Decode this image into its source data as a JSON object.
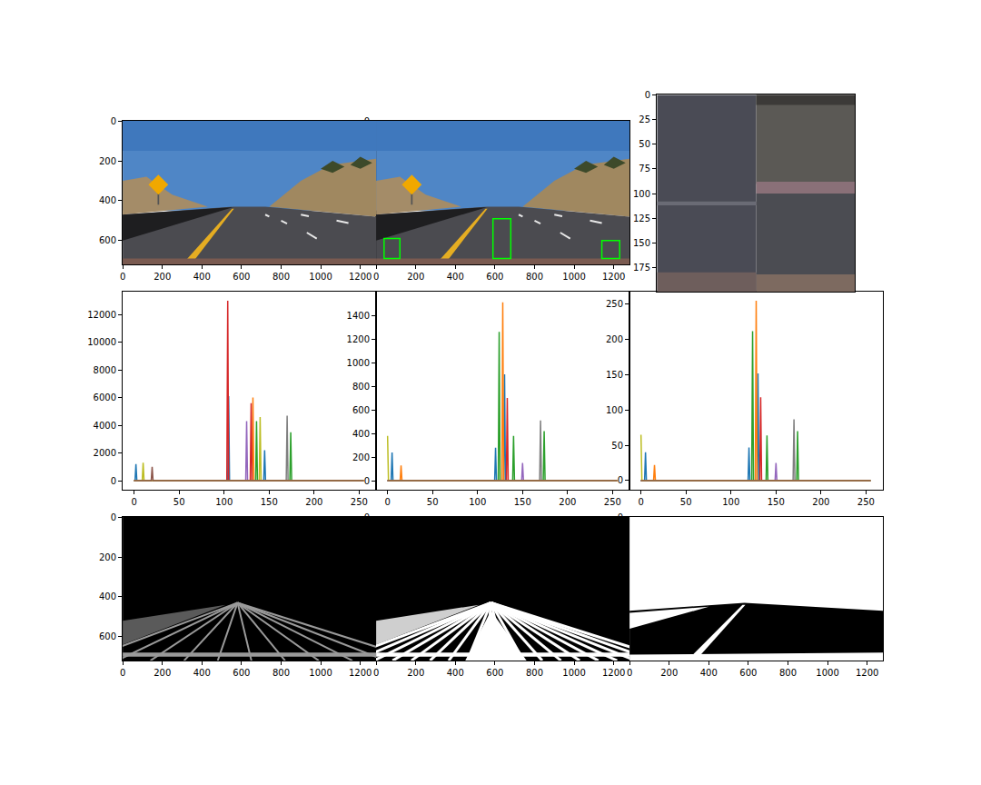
{
  "chart_data": [
    {
      "type": "image",
      "xlim": [
        -0.5,
        1279.5
      ],
      "ylim": [
        719.5,
        -0.5
      ],
      "xticks": [
        0,
        200,
        400,
        600,
        800,
        1000,
        1200
      ],
      "yticks": [
        0,
        200,
        400,
        600
      ]
    },
    {
      "type": "image",
      "xlim": [
        -0.5,
        1279.5
      ],
      "ylim": [
        719.5,
        -0.5
      ],
      "xticks": [
        0,
        200,
        400,
        600,
        800,
        1000,
        1200
      ],
      "yticks": [
        0,
        200,
        400,
        600
      ],
      "boxes": [
        [
          40,
          590,
          120,
          690
        ],
        [
          590,
          490,
          680,
          690
        ],
        [
          1140,
          600,
          1230,
          690
        ]
      ],
      "color": "#00ff00"
    },
    {
      "type": "image",
      "xlim": [
        -0.5,
        199.5
      ],
      "ylim": [
        199.5,
        -0.5
      ],
      "yticks": [
        0,
        25,
        50,
        75,
        100,
        125,
        150,
        175
      ],
      "tick_labels": "y"
    },
    {
      "type": "line",
      "xlim": [
        -12.8,
        268.8
      ],
      "ylim": [
        -650,
        13650
      ],
      "xticks": [
        0,
        50,
        100,
        150,
        200,
        250
      ],
      "yticks": [
        0,
        2000,
        4000,
        6000,
        8000,
        10000,
        12000
      ],
      "series": [
        {
          "color": "#1f77b4",
          "x": [
            0,
            1,
            2,
            3,
            104,
            105,
            106,
            144,
            145,
            146,
            255
          ],
          "values": [
            0,
            0,
            1200,
            0,
            0,
            6100,
            0,
            0,
            2200,
            0,
            0
          ]
        },
        {
          "color": "#ff7f0e",
          "x": [
            0,
            131,
            132,
            133,
            255
          ],
          "values": [
            0,
            0,
            6000,
            0,
            0
          ]
        },
        {
          "color": "#2ca02c",
          "x": [
            0,
            135,
            136,
            137,
            173,
            174,
            175,
            255
          ],
          "values": [
            0,
            0,
            4300,
            0,
            0,
            3500,
            0,
            0
          ]
        },
        {
          "color": "#d62728",
          "x": [
            0,
            103,
            104,
            105,
            129,
            130,
            131,
            255
          ],
          "values": [
            0,
            0,
            13000,
            0,
            0,
            5600,
            0,
            0
          ]
        },
        {
          "color": "#9467bd",
          "x": [
            0,
            124,
            125,
            126,
            255
          ],
          "values": [
            0,
            0,
            4300,
            0,
            0
          ]
        },
        {
          "color": "#7f7f7f",
          "x": [
            0,
            169,
            170,
            171,
            255
          ],
          "values": [
            0,
            0,
            4700,
            0,
            0
          ]
        },
        {
          "color": "#bcbd22",
          "x": [
            0,
            9,
            10,
            11,
            139,
            140,
            141,
            255
          ],
          "values": [
            0,
            0,
            1300,
            0,
            0,
            4600,
            0,
            0
          ]
        },
        {
          "color": "#8c564b",
          "x": [
            0,
            19,
            20,
            21,
            255
          ],
          "values": [
            0,
            0,
            1000,
            0,
            0
          ]
        }
      ]
    },
    {
      "type": "line",
      "xlim": [
        -12.8,
        268.8
      ],
      "ylim": [
        -76,
        1600
      ],
      "xticks": [
        0,
        50,
        100,
        150,
        200,
        250
      ],
      "yticks": [
        0,
        200,
        400,
        600,
        800,
        1000,
        1200,
        1400
      ],
      "series": [
        {
          "color": "#1f77b4",
          "x": [
            0,
            4,
            5,
            6,
            119,
            120,
            121,
            129,
            130,
            131,
            255
          ],
          "values": [
            0,
            0,
            240,
            0,
            0,
            280,
            0,
            0,
            900,
            0,
            0
          ]
        },
        {
          "color": "#ff7f0e",
          "x": [
            0,
            14,
            15,
            16,
            127,
            128,
            129,
            255
          ],
          "values": [
            0,
            0,
            130,
            0,
            0,
            1510,
            0,
            0
          ]
        },
        {
          "color": "#2ca02c",
          "x": [
            0,
            123,
            124,
            125,
            139,
            140,
            141,
            173,
            174,
            175,
            255
          ],
          "values": [
            0,
            0,
            1260,
            0,
            0,
            380,
            0,
            0,
            420,
            0,
            0
          ]
        },
        {
          "color": "#d62728",
          "x": [
            0,
            132,
            133,
            134,
            255
          ],
          "values": [
            0,
            0,
            700,
            0,
            0
          ]
        },
        {
          "color": "#9467bd",
          "x": [
            0,
            149,
            150,
            151,
            255
          ],
          "values": [
            0,
            0,
            150,
            0,
            0
          ]
        },
        {
          "color": "#7f7f7f",
          "x": [
            0,
            169,
            170,
            171,
            255
          ],
          "values": [
            0,
            0,
            510,
            0,
            0
          ]
        },
        {
          "color": "#bcbd22",
          "x": [
            0,
            1,
            255
          ],
          "values": [
            380,
            0,
            0
          ]
        },
        {
          "color": "#8c564b",
          "x": [
            0,
            255
          ],
          "values": [
            0,
            0
          ]
        }
      ]
    },
    {
      "type": "line",
      "xlim": [
        -12.8,
        268.8
      ],
      "ylim": [
        -13,
        268
      ],
      "xticks": [
        0,
        50,
        100,
        150,
        200,
        250
      ],
      "yticks": [
        0,
        50,
        100,
        150,
        200,
        250
      ],
      "series": [
        {
          "color": "#1f77b4",
          "x": [
            0,
            4,
            5,
            6,
            119,
            120,
            121,
            129,
            130,
            131,
            255
          ],
          "values": [
            0,
            0,
            40,
            0,
            0,
            47,
            0,
            0,
            152,
            0,
            0
          ]
        },
        {
          "color": "#ff7f0e",
          "x": [
            0,
            14,
            15,
            16,
            127,
            128,
            129,
            255
          ],
          "values": [
            0,
            0,
            22,
            0,
            0,
            255,
            0,
            0
          ]
        },
        {
          "color": "#2ca02c",
          "x": [
            0,
            123,
            124,
            125,
            139,
            140,
            141,
            173,
            174,
            175,
            255
          ],
          "values": [
            0,
            0,
            212,
            0,
            0,
            64,
            0,
            0,
            70,
            0,
            0
          ]
        },
        {
          "color": "#d62728",
          "x": [
            0,
            132,
            133,
            134,
            255
          ],
          "values": [
            0,
            0,
            118,
            0,
            0
          ]
        },
        {
          "color": "#9467bd",
          "x": [
            0,
            149,
            150,
            151,
            255
          ],
          "values": [
            0,
            0,
            25,
            0,
            0
          ]
        },
        {
          "color": "#7f7f7f",
          "x": [
            0,
            169,
            170,
            171,
            255
          ],
          "values": [
            0,
            0,
            87,
            0,
            0
          ]
        },
        {
          "color": "#bcbd22",
          "x": [
            0,
            1,
            255
          ],
          "values": [
            65,
            0,
            0
          ]
        },
        {
          "color": "#8c564b",
          "x": [
            0,
            255
          ],
          "values": [
            0,
            0
          ]
        }
      ]
    },
    {
      "type": "binary",
      "xlim": [
        -0.5,
        1279.5
      ],
      "ylim": [
        719.5,
        -0.5
      ],
      "xticks": [
        0,
        200,
        400,
        600,
        800,
        1000,
        1200
      ],
      "yticks": [
        0,
        200,
        400,
        600
      ]
    },
    {
      "type": "binary",
      "xlim": [
        -0.5,
        1279.5
      ],
      "ylim": [
        719.5,
        -0.5
      ],
      "xticks": [
        0,
        200,
        400,
        600,
        800,
        1000,
        1200
      ],
      "yticks": [
        0,
        200,
        400,
        600
      ]
    },
    {
      "type": "binary",
      "xlim": [
        -0.5,
        1279.5
      ],
      "ylim": [
        719.5,
        -0.5
      ],
      "xticks": [
        0,
        200,
        400,
        600,
        800,
        1000,
        1200
      ],
      "yticks": [
        0,
        200,
        400,
        600
      ]
    }
  ]
}
